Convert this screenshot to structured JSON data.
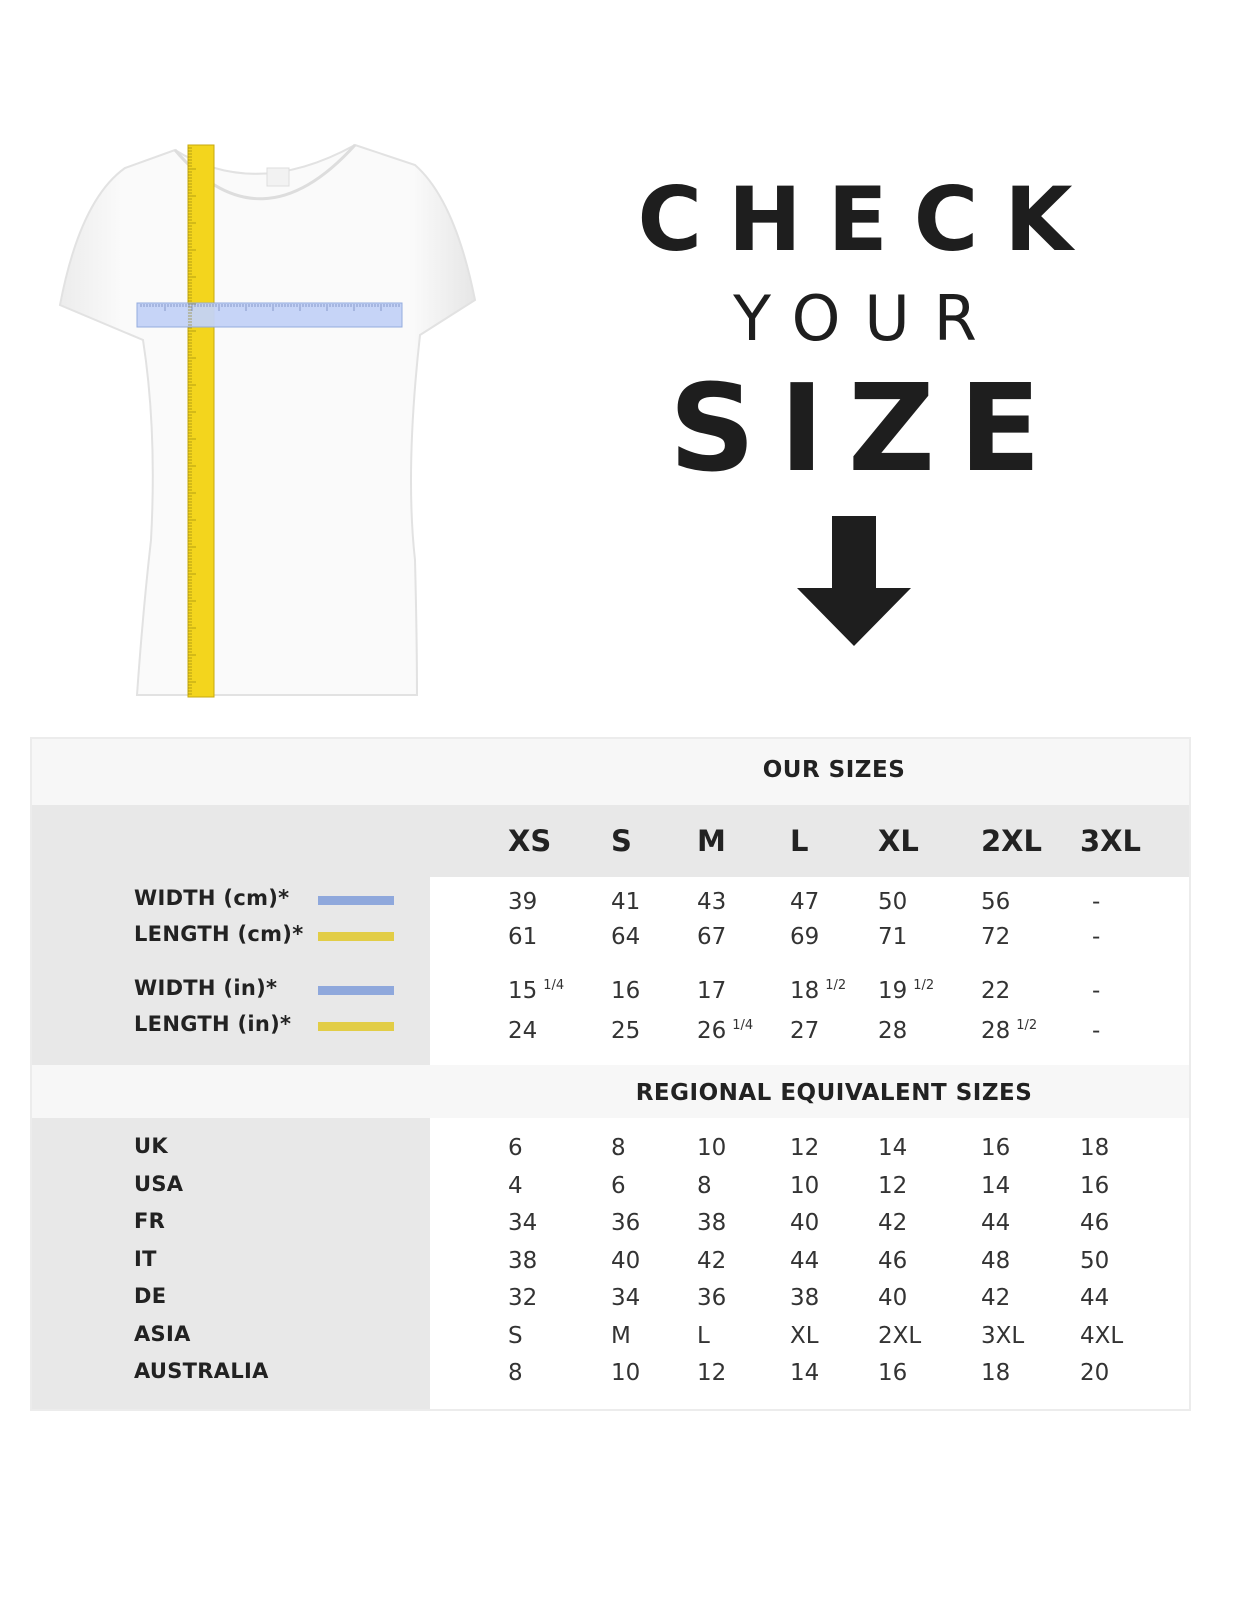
{
  "heading": {
    "line1": "CHECK",
    "line2": "YOUR",
    "line3": "SIZE"
  },
  "icons": {
    "arrow": "arrow-down-icon",
    "shirt": "t-shirt-with-measuring-tapes"
  },
  "colors": {
    "width": "#8fa8dc",
    "length": "#e2cd46",
    "text": "#1e1e1e"
  },
  "our_sizes": {
    "title": "OUR SIZES",
    "sizes": [
      "XS",
      "S",
      "M",
      "L",
      "XL",
      "2XL",
      "3XL"
    ],
    "rows": [
      {
        "label": "WIDTH (cm)*",
        "swatch": "width",
        "values": [
          [
            "39",
            ""
          ],
          [
            "41",
            ""
          ],
          [
            "43",
            ""
          ],
          [
            "47",
            ""
          ],
          [
            "50",
            ""
          ],
          [
            "56",
            ""
          ],
          [
            "-",
            ""
          ]
        ]
      },
      {
        "label": "LENGTH (cm)*",
        "swatch": "length",
        "values": [
          [
            "61",
            ""
          ],
          [
            "64",
            ""
          ],
          [
            "67",
            ""
          ],
          [
            "69",
            ""
          ],
          [
            "71",
            ""
          ],
          [
            "72",
            ""
          ],
          [
            "-",
            ""
          ]
        ]
      },
      {
        "label": "WIDTH (in)*",
        "swatch": "width",
        "values": [
          [
            "15",
            "1/4"
          ],
          [
            "16",
            ""
          ],
          [
            "17",
            ""
          ],
          [
            "18",
            "1/2"
          ],
          [
            "19",
            "1/2"
          ],
          [
            "22",
            ""
          ],
          [
            "-",
            ""
          ]
        ]
      },
      {
        "label": "LENGTH (in)*",
        "swatch": "length",
        "values": [
          [
            "24",
            ""
          ],
          [
            "25",
            ""
          ],
          [
            "26",
            "1/4"
          ],
          [
            "27",
            ""
          ],
          [
            "28",
            ""
          ],
          [
            "28",
            "1/2"
          ],
          [
            "-",
            ""
          ]
        ]
      }
    ]
  },
  "regional": {
    "title": "REGIONAL EQUIVALENT SIZES",
    "rows": [
      {
        "label": "UK",
        "values": [
          "6",
          "8",
          "10",
          "12",
          "14",
          "16",
          "18"
        ]
      },
      {
        "label": "USA",
        "values": [
          "4",
          "6",
          "8",
          "10",
          "12",
          "14",
          "16"
        ]
      },
      {
        "label": "FR",
        "values": [
          "34",
          "36",
          "38",
          "40",
          "42",
          "44",
          "46"
        ]
      },
      {
        "label": "IT",
        "values": [
          "38",
          "40",
          "42",
          "44",
          "46",
          "48",
          "50"
        ]
      },
      {
        "label": "DE",
        "values": [
          "32",
          "34",
          "36",
          "38",
          "40",
          "42",
          "44"
        ]
      },
      {
        "label": "ASIA",
        "values": [
          "S",
          "M",
          "L",
          "XL",
          "2XL",
          "3XL",
          "4XL"
        ]
      },
      {
        "label": "AUSTRALIA",
        "values": [
          "8",
          "10",
          "12",
          "14",
          "16",
          "18",
          "20"
        ]
      }
    ]
  }
}
